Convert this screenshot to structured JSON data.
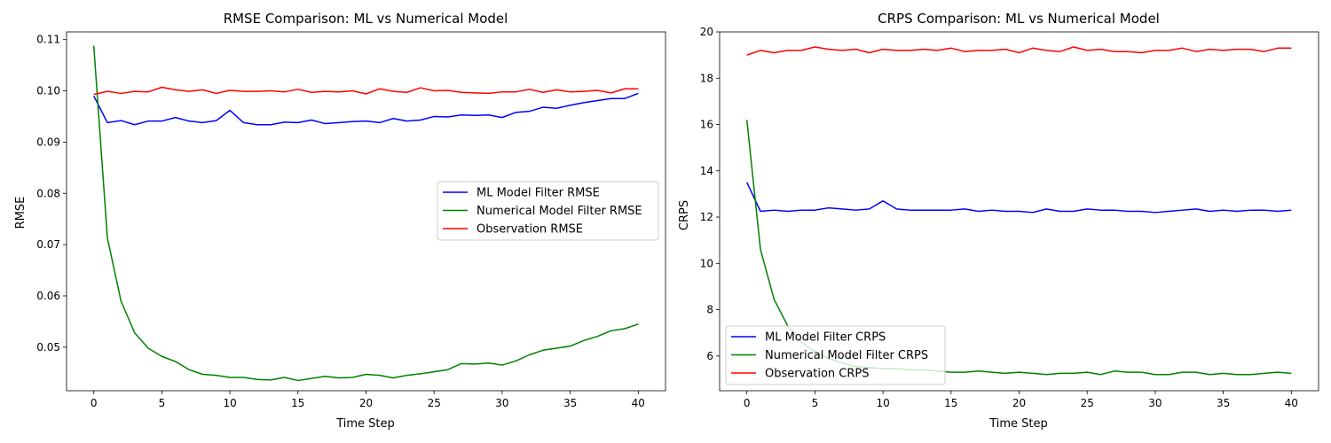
{
  "chart_data": [
    {
      "type": "line",
      "title": "RMSE Comparison: ML vs Numerical Model",
      "xlabel": "Time Step",
      "ylabel": "RMSE",
      "xlim": [
        -2,
        42
      ],
      "ylim": [
        0.0415,
        0.1115
      ],
      "xticks": [
        0,
        5,
        10,
        15,
        20,
        25,
        30,
        35,
        40
      ],
      "yticks": [
        0.05,
        0.06,
        0.07,
        0.08,
        0.09,
        0.1,
        0.11
      ],
      "ytick_labels": [
        "0.05",
        "0.06",
        "0.07",
        "0.08",
        "0.09",
        "0.10",
        "0.11"
      ],
      "legend_position": "center-right",
      "grid": false,
      "x": [
        0,
        1,
        2,
        3,
        4,
        5,
        6,
        7,
        8,
        9,
        10,
        11,
        12,
        13,
        14,
        15,
        16,
        17,
        18,
        19,
        20,
        21,
        22,
        23,
        24,
        25,
        26,
        27,
        28,
        29,
        30,
        31,
        32,
        33,
        34,
        35,
        36,
        37,
        38,
        39,
        40
      ],
      "series": [
        {
          "name": "ML Model Filter RMSE",
          "color": "#0000ff",
          "values": [
            0.099,
            0.0938,
            0.0942,
            0.0934,
            0.0941,
            0.0941,
            0.0948,
            0.0941,
            0.0938,
            0.0942,
            0.0962,
            0.0938,
            0.0934,
            0.0934,
            0.0939,
            0.0938,
            0.0943,
            0.0936,
            0.0938,
            0.094,
            0.0941,
            0.0938,
            0.0946,
            0.0941,
            0.0943,
            0.095,
            0.0949,
            0.0953,
            0.0952,
            0.0953,
            0.0948,
            0.0958,
            0.096,
            0.0968,
            0.0966,
            0.0972,
            0.0977,
            0.0981,
            0.0985,
            0.0985,
            0.0995
          ]
        },
        {
          "name": "Numerical Model Filter RMSE",
          "color": "#008000",
          "values": [
            0.1088,
            0.0713,
            0.059,
            0.0528,
            0.0498,
            0.0482,
            0.0472,
            0.0456,
            0.0447,
            0.0445,
            0.0441,
            0.0441,
            0.0437,
            0.0436,
            0.0441,
            0.0435,
            0.0439,
            0.0443,
            0.044,
            0.0441,
            0.0447,
            0.0445,
            0.044,
            0.0445,
            0.0448,
            0.0452,
            0.0456,
            0.0468,
            0.0467,
            0.0469,
            0.0465,
            0.0473,
            0.0485,
            0.0494,
            0.0498,
            0.0502,
            0.0513,
            0.0521,
            0.0532,
            0.0536,
            0.0545
          ]
        },
        {
          "name": "Observation RMSE",
          "color": "#ff0000",
          "values": [
            0.0993,
            0.0999,
            0.0995,
            0.0999,
            0.0998,
            0.1007,
            0.1002,
            0.0999,
            0.1002,
            0.0995,
            0.1001,
            0.0999,
            0.0999,
            0.1,
            0.0998,
            0.1003,
            0.0997,
            0.0999,
            0.0998,
            0.1,
            0.0994,
            0.1004,
            0.0999,
            0.0997,
            0.1006,
            0.1,
            0.1001,
            0.0997,
            0.0996,
            0.0995,
            0.0998,
            0.0998,
            0.1003,
            0.0997,
            0.1002,
            0.0998,
            0.0999,
            0.1001,
            0.0996,
            0.1004,
            0.1004
          ]
        }
      ]
    },
    {
      "type": "line",
      "title": "CRPS Comparison: ML vs Numerical Model",
      "xlabel": "Time Step",
      "ylabel": "CRPS",
      "xlim": [
        -2,
        42
      ],
      "ylim": [
        4.5,
        20.0
      ],
      "xticks": [
        0,
        5,
        10,
        15,
        20,
        25,
        30,
        35,
        40
      ],
      "yticks": [
        6,
        8,
        10,
        12,
        14,
        16,
        18,
        20
      ],
      "ytick_labels": [
        "6",
        "8",
        "10",
        "12",
        "14",
        "16",
        "18",
        "20"
      ],
      "legend_position": "lower-left",
      "grid": false,
      "x": [
        0,
        1,
        2,
        3,
        4,
        5,
        6,
        7,
        8,
        9,
        10,
        11,
        12,
        13,
        14,
        15,
        16,
        17,
        18,
        19,
        20,
        21,
        22,
        23,
        24,
        25,
        26,
        27,
        28,
        29,
        30,
        31,
        32,
        33,
        34,
        35,
        36,
        37,
        38,
        39,
        40
      ],
      "series": [
        {
          "name": "ML Model Filter CRPS",
          "color": "#0000ff",
          "values": [
            13.5,
            12.25,
            12.3,
            12.25,
            12.3,
            12.3,
            12.4,
            12.35,
            12.3,
            12.35,
            12.7,
            12.35,
            12.3,
            12.3,
            12.3,
            12.3,
            12.35,
            12.25,
            12.3,
            12.25,
            12.25,
            12.2,
            12.35,
            12.25,
            12.25,
            12.35,
            12.3,
            12.3,
            12.25,
            12.25,
            12.2,
            12.25,
            12.3,
            12.35,
            12.25,
            12.3,
            12.25,
            12.3,
            12.3,
            12.25,
            12.3
          ]
        },
        {
          "name": "Numerical Model Filter CRPS",
          "color": "#008000",
          "values": [
            16.2,
            10.6,
            8.45,
            7.3,
            6.6,
            6.2,
            5.9,
            5.7,
            5.55,
            5.5,
            5.45,
            5.45,
            5.4,
            5.4,
            5.35,
            5.3,
            5.3,
            5.35,
            5.3,
            5.25,
            5.3,
            5.25,
            5.2,
            5.25,
            5.25,
            5.3,
            5.2,
            5.35,
            5.3,
            5.3,
            5.2,
            5.2,
            5.3,
            5.3,
            5.2,
            5.25,
            5.2,
            5.2,
            5.25,
            5.3,
            5.25
          ]
        },
        {
          "name": "Observation CRPS",
          "color": "#ff0000",
          "values": [
            19.0,
            19.2,
            19.1,
            19.2,
            19.2,
            19.35,
            19.25,
            19.2,
            19.25,
            19.1,
            19.25,
            19.2,
            19.2,
            19.25,
            19.2,
            19.3,
            19.15,
            19.2,
            19.2,
            19.25,
            19.1,
            19.3,
            19.2,
            19.15,
            19.35,
            19.2,
            19.25,
            19.15,
            19.15,
            19.1,
            19.2,
            19.2,
            19.3,
            19.15,
            19.25,
            19.2,
            19.25,
            19.25,
            19.15,
            19.3,
            19.3
          ]
        }
      ]
    }
  ]
}
